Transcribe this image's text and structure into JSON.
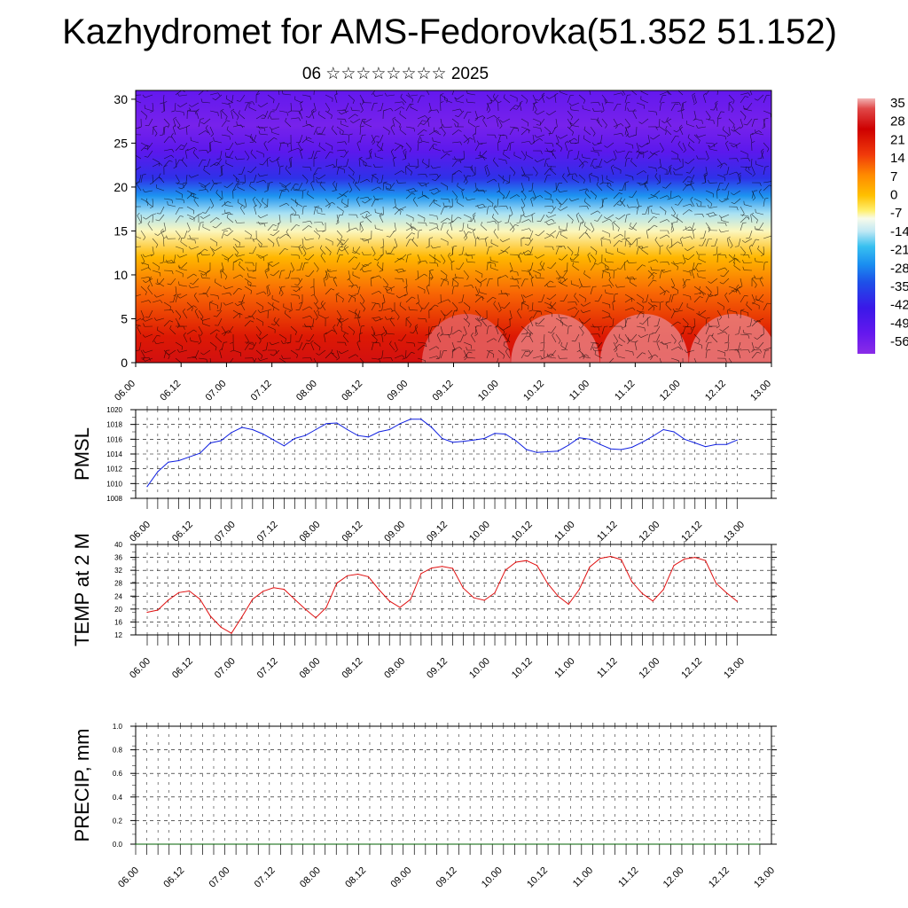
{
  "page": {
    "title": "Kazhydromet for AMS-Fedorovka(51.352 51.152)",
    "subtitle": "06 ☆☆☆☆☆☆☆☆ 2025"
  },
  "chart_data": [
    {
      "type": "heatmap",
      "name": "vertical-cross-section",
      "title": "",
      "xlabel": "",
      "ylabel": "",
      "x_ticks": [
        "06.00",
        "06.12",
        "07.00",
        "07.12",
        "08.00",
        "08.12",
        "09.00",
        "09.12",
        "10.00",
        "10.12",
        "11.00",
        "11.12",
        "12.00",
        "12.12",
        "13.00"
      ],
      "ylim": [
        0,
        31
      ],
      "y_ticks": [
        0,
        5,
        10,
        15,
        20,
        25,
        30
      ],
      "colorbar": {
        "labels": [
          "35",
          "28",
          "21",
          "14",
          "7",
          "0",
          "-7",
          "-14",
          "-21",
          "-28",
          "-35",
          "-42",
          "-49",
          "-56"
        ],
        "range": [
          -60,
          38
        ]
      },
      "wind_barbs": true,
      "bands": [
        {
          "y": 0,
          "value": 28
        },
        {
          "y": 3,
          "value": 22
        },
        {
          "y": 8,
          "value": 12
        },
        {
          "y": 12,
          "value": 2
        },
        {
          "y": 15,
          "value": -7
        },
        {
          "y": 17,
          "value": -14
        },
        {
          "y": 19,
          "value": -25
        },
        {
          "y": 21,
          "value": -38
        },
        {
          "y": 24,
          "value": -50
        },
        {
          "y": 27,
          "value": -56
        },
        {
          "y": 31,
          "value": -52
        }
      ],
      "hot_spots": [
        {
          "x": 0.52,
          "y": 0,
          "value": 35
        },
        {
          "x": 0.66,
          "y": 0,
          "value": 36
        },
        {
          "x": 0.8,
          "y": 0,
          "value": 36
        },
        {
          "x": 0.94,
          "y": 0,
          "value": 36
        }
      ]
    },
    {
      "type": "line",
      "name": "PMSL",
      "ylabel": "PMSL",
      "ylim": [
        1008,
        1020
      ],
      "y_ticks": [
        1008,
        1010,
        1012,
        1014,
        1016,
        1018,
        1020
      ],
      "x_ticks": [
        "06.00",
        "06.12",
        "07.00",
        "07.12",
        "08.00",
        "08.12",
        "09.00",
        "09.12",
        "10.00",
        "10.12",
        "11.00",
        "11.12",
        "12.00",
        "12.12",
        "13.00"
      ],
      "series": [
        {
          "color": "#1020e0",
          "values": [
            1009.6,
            1011.6,
            1012.9,
            1013.1,
            1013.6,
            1014.1,
            1015.5,
            1015.8,
            1016.9,
            1017.6,
            1017.3,
            1016.7,
            1015.9,
            1015.1,
            1016.1,
            1016.5,
            1017.3,
            1018.1,
            1018.2,
            1017.3,
            1016.5,
            1016.3,
            1017.0,
            1017.3,
            1018.1,
            1018.7,
            1018.7,
            1017.6,
            1016.1,
            1015.6,
            1015.7,
            1015.9,
            1016.1,
            1016.8,
            1016.7,
            1015.8,
            1014.6,
            1014.2,
            1014.3,
            1014.4,
            1015.2,
            1016.2,
            1016.0,
            1015.3,
            1014.7,
            1014.6,
            1014.9,
            1015.6,
            1016.4,
            1017.3,
            1017.0,
            1016.0,
            1015.5,
            1015.0,
            1015.3,
            1015.3,
            1015.9
          ]
        }
      ]
    },
    {
      "type": "line",
      "name": "TEMP at 2 M",
      "ylabel": "TEMP at 2 M",
      "ylim": [
        12,
        40
      ],
      "y_ticks": [
        12,
        16,
        20,
        24,
        28,
        32,
        36,
        40
      ],
      "x_ticks": [
        "06.00",
        "06.12",
        "07.00",
        "07.12",
        "08.00",
        "08.12",
        "09.00",
        "09.12",
        "10.00",
        "10.12",
        "11.00",
        "11.12",
        "12.00",
        "12.12",
        "13.00"
      ],
      "series": [
        {
          "color": "#e01010",
          "values": [
            19,
            19.7,
            22.8,
            25.1,
            25.6,
            23.1,
            17.8,
            14.4,
            12.5,
            17.6,
            23,
            25.5,
            26.6,
            26.1,
            23,
            20,
            17.3,
            20.5,
            28,
            30.3,
            30.8,
            30,
            26,
            22.5,
            20.5,
            23,
            31,
            32.7,
            33.2,
            32.6,
            26.5,
            23.5,
            22.7,
            25,
            32,
            34.5,
            35,
            33.5,
            28,
            24,
            21.5,
            26,
            33,
            35.7,
            36.3,
            35.3,
            28.5,
            24.8,
            22.5,
            26,
            33.5,
            35.5,
            36,
            35,
            28,
            25,
            22.4
          ]
        }
      ]
    },
    {
      "type": "line",
      "name": "PRECIP, mm",
      "ylabel": "PRECIP, mm",
      "ylim": [
        0,
        1
      ],
      "y_ticks": [
        "0.0",
        "0.2",
        "0.4",
        "0.6",
        "0.8",
        "1.0"
      ],
      "x_ticks": [
        "06.00",
        "06.12",
        "07.00",
        "07.12",
        "08.00",
        "08.12",
        "09.00",
        "09.12",
        "10.00",
        "10.12",
        "11.00",
        "11.12",
        "12.00",
        "12.12",
        "13.00"
      ],
      "series": [
        {
          "color": "#006000",
          "values": [
            0,
            0,
            0,
            0,
            0,
            0,
            0,
            0,
            0,
            0,
            0,
            0,
            0,
            0,
            0,
            0,
            0,
            0,
            0,
            0,
            0,
            0,
            0,
            0,
            0,
            0,
            0,
            0,
            0,
            0,
            0,
            0,
            0,
            0,
            0,
            0,
            0,
            0,
            0,
            0,
            0,
            0,
            0,
            0,
            0,
            0,
            0,
            0,
            0,
            0,
            0,
            0,
            0,
            0,
            0,
            0,
            0
          ]
        }
      ]
    }
  ]
}
